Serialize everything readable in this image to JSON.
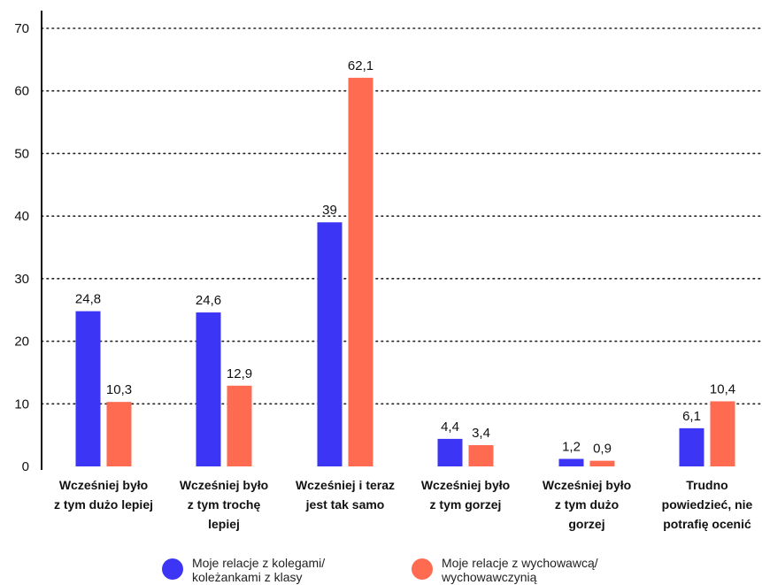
{
  "chart_data": {
    "type": "bar",
    "categories": [
      [
        "Wcześniej było",
        "z tym dużo lepiej"
      ],
      [
        "Wcześniej było",
        "z tym trochę",
        "lepiej"
      ],
      [
        "Wcześniej i teraz",
        "jest tak samo"
      ],
      [
        "Wcześniej było",
        "z tym gorzej"
      ],
      [
        "Wcześniej było",
        "z tym dużo",
        "gorzej"
      ],
      [
        "Trudno",
        "powiedzieć, nie",
        "potrafię ocenić"
      ]
    ],
    "series": [
      {
        "name": "Moje relacje z kolegami/ koleżankami z klasy",
        "color": "#3d35f5",
        "values": [
          24.8,
          24.6,
          39,
          4.4,
          1.2,
          6.1
        ],
        "labels": [
          "24,8",
          "24,6",
          "39",
          "4,4",
          "1,2",
          "6,1"
        ]
      },
      {
        "name": "Moje relacje z wychowawcą/ wychowawczynią",
        "color": "#ff6b50",
        "values": [
          10.3,
          12.9,
          62.1,
          3.4,
          0.9,
          10.4
        ],
        "labels": [
          "10,3",
          "12,9",
          "62,1",
          "3,4",
          "0,9",
          "10,4"
        ]
      }
    ],
    "yticks": [
      0,
      10,
      20,
      30,
      40,
      50,
      60,
      70
    ],
    "ylim": [
      0,
      70
    ],
    "grid": "dotted horizontal",
    "legend_position": "bottom"
  },
  "legend": [
    {
      "line1": "Moje relacje z kolegami/",
      "line2": "koleżankami z klasy",
      "color": "#3d35f5"
    },
    {
      "line1": "Moje relacje z wychowawcą/",
      "line2": "wychowawczynią",
      "color": "#ff6b50"
    }
  ]
}
